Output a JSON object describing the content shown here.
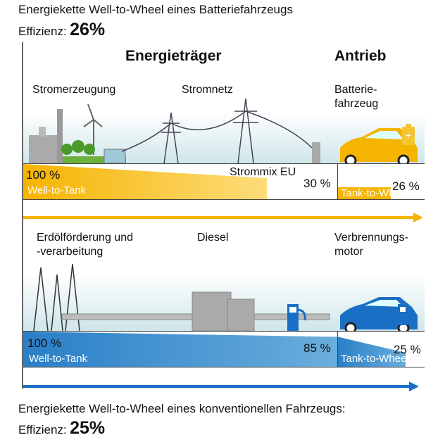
{
  "top": {
    "title": "Energiekette Well-to-Wheel eines Batteriefahrzeugs",
    "efficiency_label": "Effizienz:",
    "efficiency_value": "26%"
  },
  "headers": {
    "energy_carrier": "Energieträger",
    "drive": "Antrieb"
  },
  "battery": {
    "labels": [
      "Stromerzeugung",
      "Stromnetz",
      "Batterie-\nfahrzeug"
    ],
    "start_pct": "100 %",
    "wtt_label": "Well-to-Tank",
    "mix_label": "Strommix EU",
    "wtt_pct": "30 %",
    "ttw_label": "Tank-to-Wheel",
    "ttw_pct": "26 %",
    "values": {
      "start": 100,
      "well_to_tank": 30,
      "tank_to_wheel": 26
    },
    "color": "#f5b400"
  },
  "conventional": {
    "labels": [
      "Erdölförderung und\n-verarbeitung",
      "Diesel",
      "Verbrennungs-\nmotor"
    ],
    "start_pct": "100 %",
    "wtt_label": "Well-to-Tank",
    "wtt_pct": "85 %",
    "ttw_label": "Tank-to-Wheel",
    "ttw_pct": "25 %",
    "values": {
      "start": 100,
      "well_to_tank": 85,
      "tank_to_wheel": 25
    },
    "color": "#1a6fc4"
  },
  "bottom": {
    "title": "Energiekette Well-to-Wheel eines konventionellen Fahrzeugs:",
    "efficiency_label": "Effizienz:",
    "efficiency_value": "25%"
  }
}
